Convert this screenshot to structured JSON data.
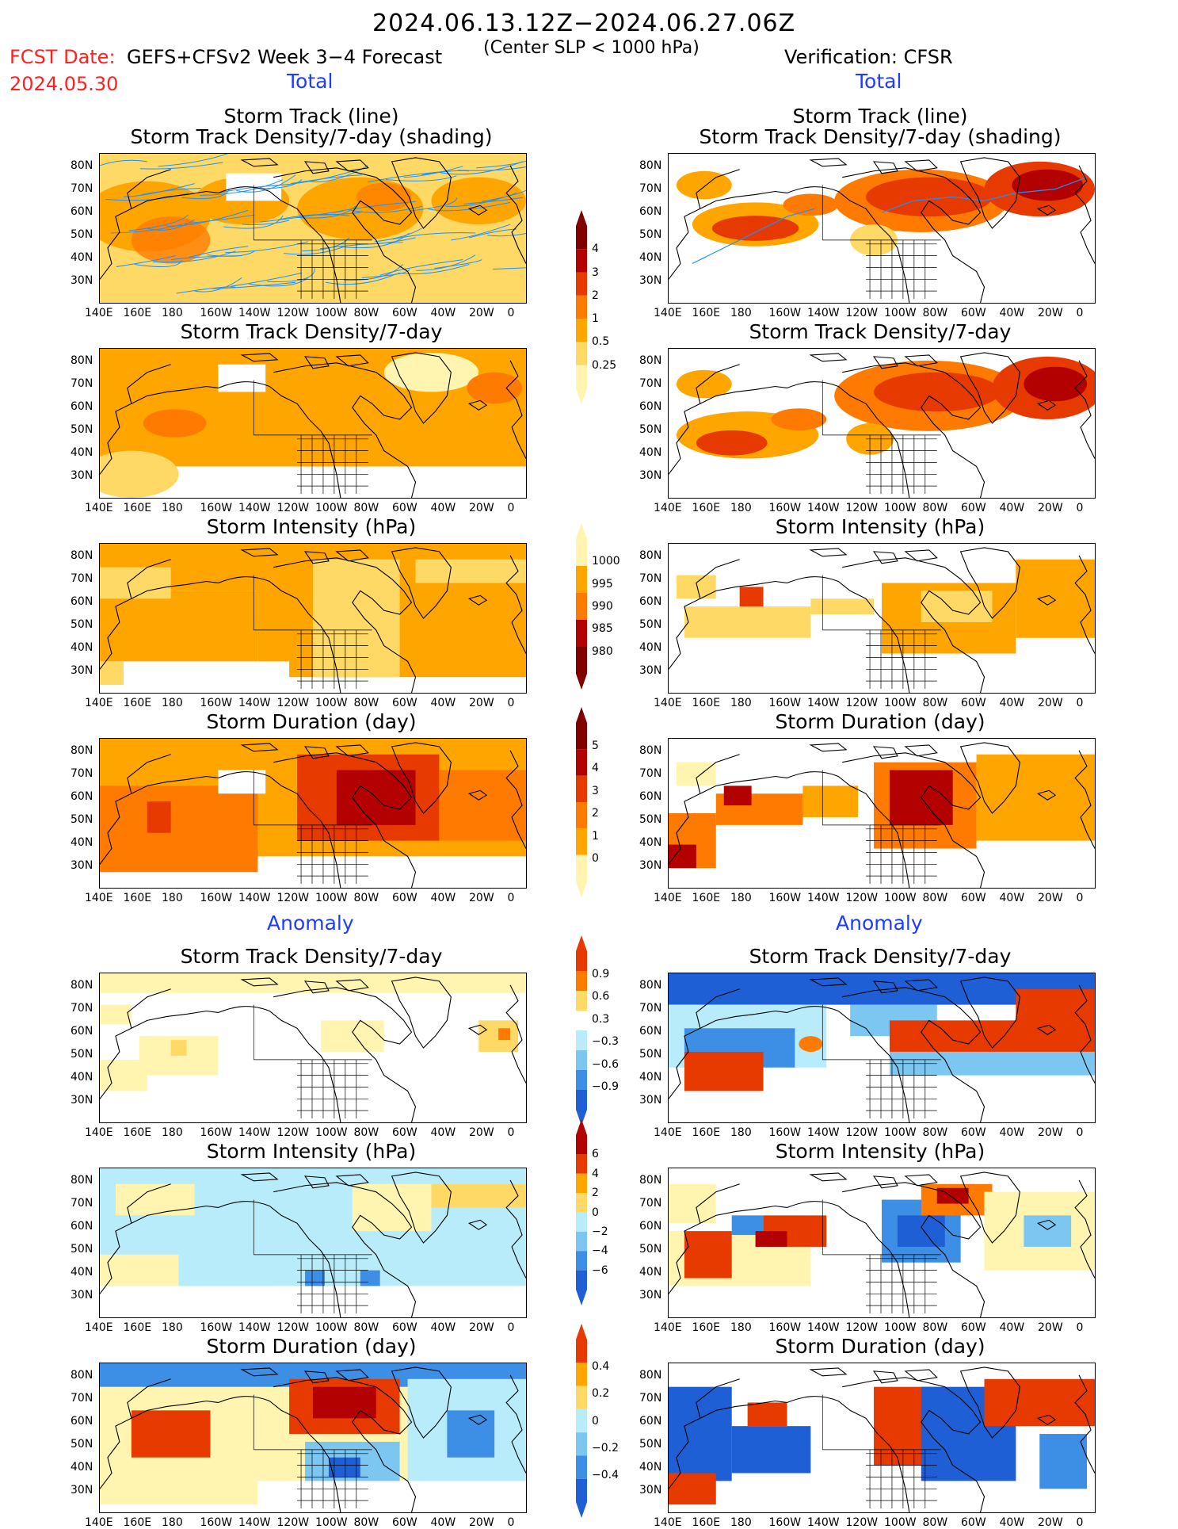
{
  "header": {
    "date_range": "2024.06.13.12Z−2024.06.27.06Z",
    "fcst_date_label": "FCST Date:",
    "fcst_date_value": "2024.05.30",
    "forecast_title": "GEFS+CFSv2 Week 3−4 Forecast",
    "criterion": "(Center SLP < 1000 hPa)",
    "verification": "Verification: CFSR"
  },
  "sections": {
    "total": "Total",
    "anomaly": "Anomaly"
  },
  "panels": {
    "r1_title1": "Storm Track (line)",
    "r1_title2": "Storm Track Density/7-day (shading)",
    "r2_title": "Storm Track Density/7-day",
    "r3_title": "Storm Intensity (hPa)",
    "r4_title": "Storm Duration (day)",
    "r5_title": "Storm Track Density/7-day",
    "r6_title": "Storm Intensity (hPa)",
    "r7_title": "Storm Duration (day)"
  },
  "axes": {
    "lat_ticks": [
      "80N",
      "70N",
      "60N",
      "50N",
      "40N",
      "30N"
    ],
    "lon_ticks": [
      "140E",
      "160E",
      "180",
      "160W",
      "140W",
      "120W",
      "100W",
      "80W",
      "60W",
      "40W",
      "20W",
      "0"
    ]
  },
  "colorbars": {
    "density_total": [
      "4",
      "3",
      "2",
      "1",
      "0.5",
      "0.25"
    ],
    "intensity_total": [
      "1000",
      "995",
      "990",
      "985",
      "980"
    ],
    "duration_total": [
      "5",
      "4",
      "3",
      "2",
      "1",
      "0"
    ],
    "density_anom": [
      "0.9",
      "0.6",
      "0.3",
      "−0.3",
      "−0.6",
      "−0.9"
    ],
    "intensity_anom": [
      "6",
      "4",
      "2",
      "0",
      "−2",
      "−4",
      "−6"
    ],
    "duration_anom": [
      "0.4",
      "0.2",
      "0",
      "−0.2",
      "−0.4"
    ]
  },
  "colors": {
    "warm": [
      "#fff5b0",
      "#ffd966",
      "#ffa500",
      "#ff7a00",
      "#e63a00",
      "#b30000",
      "#800000"
    ],
    "cool": [
      "#b8ecfa",
      "#7cc6f2",
      "#3d8fe6",
      "#1f5fd6"
    ],
    "track_line": "#1e90ff"
  },
  "chart_data": [
    {
      "type": "heatmap",
      "panel": "forecast-total-track",
      "title": "Storm Track (line) / Storm Track Density/7-day (shading)",
      "levels": [
        0.25,
        0.5,
        1,
        2,
        3,
        4
      ]
    },
    {
      "type": "heatmap",
      "panel": "verification-total-track",
      "title": "Storm Track (line) / Storm Track Density/7-day (shading)",
      "levels": [
        0.25,
        0.5,
        1,
        2,
        3,
        4
      ]
    },
    {
      "type": "heatmap",
      "panel": "forecast-total-density",
      "title": "Storm Track Density/7-day",
      "levels": [
        0.25,
        0.5,
        1,
        2,
        3,
        4
      ]
    },
    {
      "type": "heatmap",
      "panel": "verification-total-density",
      "title": "Storm Track Density/7-day",
      "levels": [
        0.25,
        0.5,
        1,
        2,
        3,
        4
      ]
    },
    {
      "type": "heatmap",
      "panel": "forecast-total-intensity",
      "title": "Storm Intensity (hPa)",
      "levels": [
        980,
        985,
        990,
        995,
        1000
      ]
    },
    {
      "type": "heatmap",
      "panel": "verification-total-intensity",
      "title": "Storm Intensity (hPa)",
      "levels": [
        980,
        985,
        990,
        995,
        1000
      ]
    },
    {
      "type": "heatmap",
      "panel": "forecast-total-duration",
      "title": "Storm Duration (day)",
      "levels": [
        0,
        1,
        2,
        3,
        4,
        5
      ]
    },
    {
      "type": "heatmap",
      "panel": "verification-total-duration",
      "title": "Storm Duration (day)",
      "levels": [
        0,
        1,
        2,
        3,
        4,
        5
      ]
    },
    {
      "type": "heatmap",
      "panel": "forecast-anomaly-density",
      "title": "Storm Track Density/7-day",
      "levels": [
        -0.9,
        -0.6,
        -0.3,
        0.3,
        0.6,
        0.9
      ]
    },
    {
      "type": "heatmap",
      "panel": "verification-anomaly-density",
      "title": "Storm Track Density/7-day",
      "levels": [
        -0.9,
        -0.6,
        -0.3,
        0.3,
        0.6,
        0.9
      ]
    },
    {
      "type": "heatmap",
      "panel": "forecast-anomaly-intensity",
      "title": "Storm Intensity (hPa)",
      "levels": [
        -6,
        -4,
        -2,
        0,
        2,
        4,
        6
      ]
    },
    {
      "type": "heatmap",
      "panel": "verification-anomaly-intensity",
      "title": "Storm Intensity (hPa)",
      "levels": [
        -6,
        -4,
        -2,
        0,
        2,
        4,
        6
      ]
    },
    {
      "type": "heatmap",
      "panel": "forecast-anomaly-duration",
      "title": "Storm Duration (day)",
      "levels": [
        -0.4,
        -0.2,
        0,
        0.2,
        0.4
      ]
    },
    {
      "type": "heatmap",
      "panel": "verification-anomaly-duration",
      "title": "Storm Duration (day)",
      "levels": [
        -0.4,
        -0.2,
        0,
        0.2,
        0.4
      ]
    }
  ]
}
